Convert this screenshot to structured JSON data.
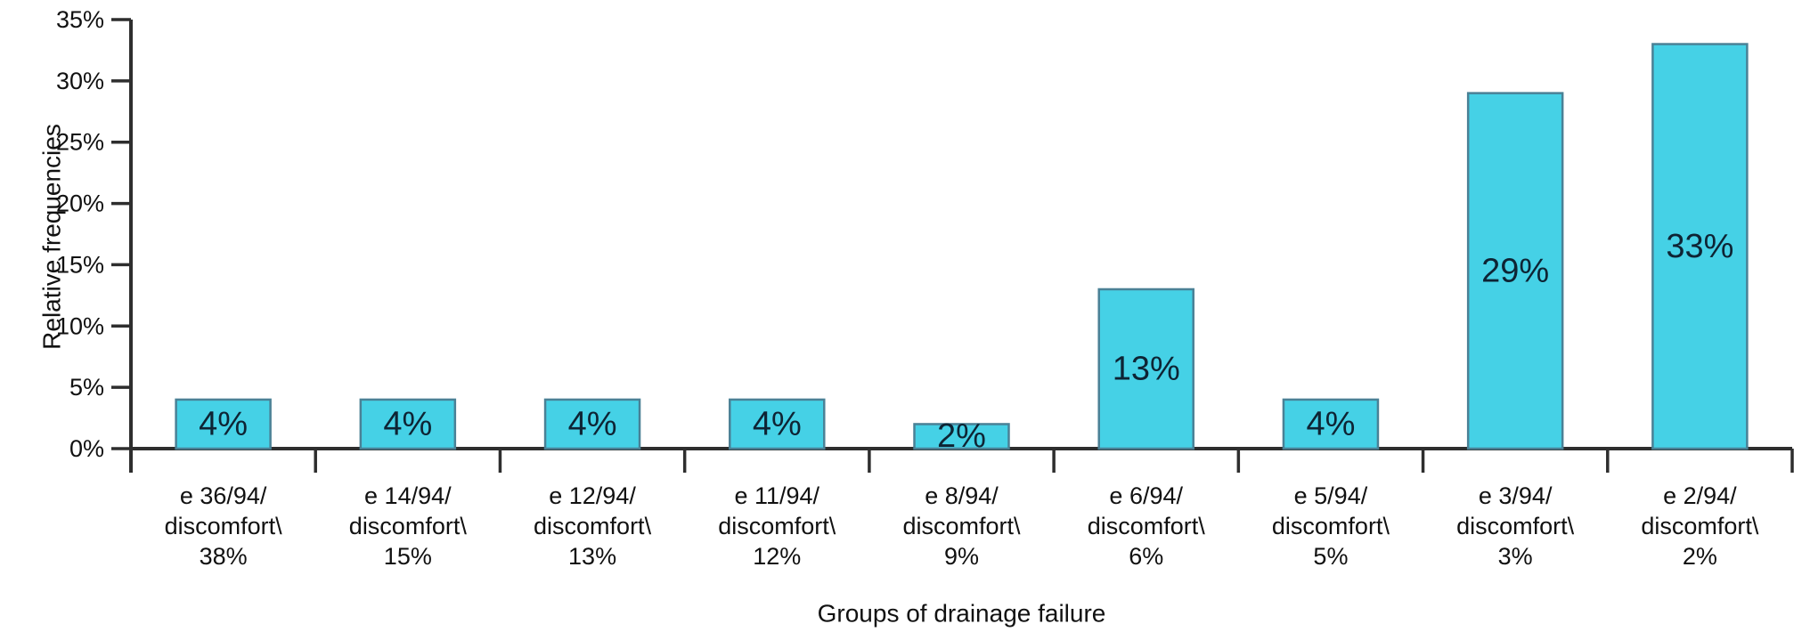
{
  "chart_data": {
    "type": "bar",
    "title": "",
    "xlabel": "Groups of drainage failure",
    "ylabel": "Relative frequencies",
    "ylim": [
      0,
      35
    ],
    "ytick_step": 5,
    "yticks": [
      "0%",
      "5%",
      "10%",
      "15%",
      "20%",
      "25%",
      "30%",
      "35%"
    ],
    "grid": false,
    "legend": false,
    "categories": [
      [
        "e 36/94/",
        "discomfort\\",
        "38%"
      ],
      [
        "e 14/94/",
        "discomfort\\",
        "15%"
      ],
      [
        "e 12/94/",
        "discomfort\\",
        "13%"
      ],
      [
        "e 11/94/",
        "discomfort\\",
        "12%"
      ],
      [
        "e 8/94/",
        "discomfort\\",
        "9%"
      ],
      [
        "e 6/94/",
        "discomfort\\",
        "6%"
      ],
      [
        "e 5/94/",
        "discomfort\\",
        "5%"
      ],
      [
        "e 3/94/",
        "discomfort\\",
        "3%"
      ],
      [
        "e 2/94/",
        "discomfort\\",
        "2%"
      ]
    ],
    "values": [
      4,
      4,
      4,
      4,
      2,
      13,
      4,
      29,
      33
    ],
    "bar_labels": [
      "4%",
      "4%",
      "4%",
      "4%",
      "2%",
      "13%",
      "4%",
      "29%",
      "33%"
    ],
    "colors": {
      "background": "#ffffff",
      "bar_fill": "#45d1e6",
      "bar_stroke": "#4a8196",
      "axis": "#2e2e2e",
      "tick_text": "#111111",
      "bar_label_text": "#0e2434"
    }
  }
}
